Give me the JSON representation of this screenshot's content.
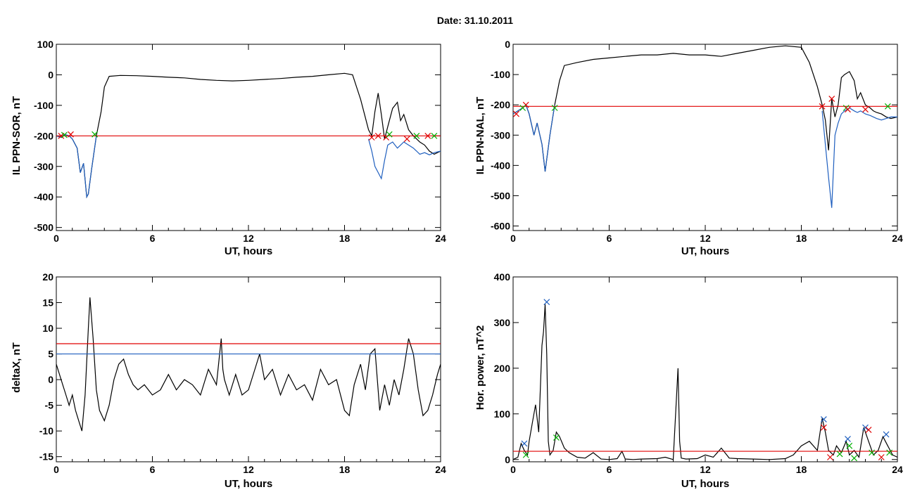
{
  "header": {
    "date_label": "Date:  31.10.2011"
  },
  "chart_data": [
    {
      "id": "sor",
      "type": "line",
      "xlabel": "UT, hours",
      "ylabel": "IL PPN-SOR, nT",
      "xlim": [
        0,
        24
      ],
      "ylim": [
        -510,
        100
      ],
      "xticks": [
        0,
        6,
        12,
        18,
        24
      ],
      "yticks": [
        -500,
        -400,
        -300,
        -200,
        -100,
        0,
        100
      ],
      "series": [
        {
          "color": "#000000",
          "x": [
            0,
            0.3,
            0.5,
            0.8,
            1.0,
            1.3,
            1.5,
            1.7,
            1.9,
            2.0,
            2.2,
            2.5,
            2.8,
            3.0,
            3.3,
            4,
            5,
            6,
            7,
            8,
            9,
            10,
            11,
            12,
            13,
            14,
            15,
            16,
            17,
            18,
            18.5,
            19,
            19.3,
            19.5,
            19.7,
            19.9,
            20.1,
            20.3,
            20.5,
            20.7,
            21.0,
            21.3,
            21.5,
            21.7,
            22.0,
            22.3,
            22.5,
            22.7,
            23.0,
            23.3,
            23.6,
            24
          ],
          "y": [
            -200,
            -205,
            -195,
            -200,
            -210,
            -240,
            -320,
            -290,
            -400,
            -390,
            -310,
            -200,
            -120,
            -40,
            -5,
            -2,
            -3,
            -5,
            -8,
            -10,
            -15,
            -18,
            -20,
            -18,
            -15,
            -12,
            -8,
            -5,
            0,
            5,
            0,
            -80,
            -140,
            -180,
            -200,
            -120,
            -60,
            -130,
            -210,
            -170,
            -110,
            -90,
            -150,
            -130,
            -180,
            -200,
            -210,
            -220,
            -230,
            -250,
            -260,
            -250
          ]
        },
        {
          "color": "#1f5fbf",
          "x": [
            0,
            0.3,
            0.5,
            0.8,
            1.0,
            1.3,
            1.5,
            1.7,
            1.9,
            2.0,
            2.2,
            2.5
          ],
          "y": [
            -200,
            -205,
            -195,
            -200,
            -210,
            -240,
            -320,
            -290,
            -400,
            -390,
            -310,
            -200
          ]
        },
        {
          "color": "#1f5fbf",
          "x": [
            19.5,
            19.7,
            19.9,
            20.1,
            20.3,
            20.5,
            20.7,
            21.0,
            21.3,
            21.5,
            21.7,
            22.0,
            22.3,
            22.5,
            22.7,
            23.0,
            23.3,
            23.6,
            24
          ],
          "y": [
            -210,
            -250,
            -300,
            -320,
            -340,
            -280,
            -230,
            -220,
            -240,
            -230,
            -220,
            -230,
            -240,
            -250,
            -260,
            -255,
            -262,
            -255,
            -250
          ]
        }
      ],
      "hlines": [
        {
          "y": -200,
          "color": "#e00000"
        }
      ],
      "markers": [
        {
          "x": 0.3,
          "y": -200,
          "color": "#e00000"
        },
        {
          "x": 0.9,
          "y": -195,
          "color": "#e00000"
        },
        {
          "x": 0.5,
          "y": -197,
          "color": "#00b000"
        },
        {
          "x": 2.4,
          "y": -195,
          "color": "#00b000"
        },
        {
          "x": 19.7,
          "y": -205,
          "color": "#e00000"
        },
        {
          "x": 20.1,
          "y": -200,
          "color": "#e00000"
        },
        {
          "x": 20.6,
          "y": -205,
          "color": "#e00000"
        },
        {
          "x": 20.8,
          "y": -195,
          "color": "#00b000"
        },
        {
          "x": 21.9,
          "y": -210,
          "color": "#e00000"
        },
        {
          "x": 22.5,
          "y": -200,
          "color": "#00b000"
        },
        {
          "x": 23.2,
          "y": -200,
          "color": "#e00000"
        },
        {
          "x": 23.6,
          "y": -200,
          "color": "#00b000"
        }
      ]
    },
    {
      "id": "nal",
      "type": "line",
      "xlabel": "UT, hours",
      "ylabel": "IL PPN-NAL, nT",
      "xlim": [
        0,
        24
      ],
      "ylim": [
        -615,
        0
      ],
      "xticks": [
        0,
        6,
        12,
        18,
        24
      ],
      "yticks": [
        -600,
        -500,
        -400,
        -300,
        -200,
        -100,
        0
      ],
      "series": [
        {
          "color": "#000000",
          "x": [
            0,
            0.3,
            0.6,
            0.8,
            1.0,
            1.3,
            1.5,
            1.8,
            2.0,
            2.3,
            2.6,
            2.9,
            3.2,
            4,
            5,
            6,
            7,
            8,
            9,
            10,
            11,
            12,
            13,
            14,
            15,
            16,
            17,
            18,
            18.5,
            19,
            19.3,
            19.5,
            19.7,
            19.9,
            20.1,
            20.3,
            20.5,
            20.7,
            21.0,
            21.3,
            21.5,
            21.7,
            22.0,
            22.3,
            22.5,
            22.7,
            23.0,
            23.3,
            23.6,
            24
          ],
          "y": [
            -230,
            -220,
            -210,
            -200,
            -230,
            -300,
            -260,
            -330,
            -420,
            -300,
            -200,
            -120,
            -70,
            -60,
            -50,
            -45,
            -40,
            -35,
            -35,
            -30,
            -35,
            -35,
            -40,
            -30,
            -20,
            -10,
            -5,
            -10,
            -60,
            -140,
            -200,
            -250,
            -350,
            -180,
            -240,
            -200,
            -110,
            -100,
            -90,
            -120,
            -180,
            -160,
            -200,
            -210,
            -220,
            -225,
            -230,
            -240,
            -245,
            -240
          ]
        },
        {
          "color": "#1f5fbf",
          "x": [
            0,
            0.3,
            0.6,
            0.8,
            1.0,
            1.3,
            1.5,
            1.8,
            2.0,
            2.3,
            2.6
          ],
          "y": [
            -230,
            -220,
            -210,
            -200,
            -230,
            -300,
            -260,
            -330,
            -420,
            -300,
            -200
          ]
        },
        {
          "color": "#1f5fbf",
          "x": [
            19.3,
            19.5,
            19.7,
            19.9,
            20.1,
            20.3,
            20.5,
            20.7,
            21.0,
            21.3,
            21.5,
            21.7,
            22.0,
            22.3,
            22.5,
            22.7,
            23.0,
            23.3,
            23.6,
            24
          ],
          "y": [
            -220,
            -330,
            -440,
            -540,
            -300,
            -260,
            -230,
            -220,
            -210,
            -220,
            -225,
            -220,
            -230,
            -235,
            -240,
            -245,
            -250,
            -245,
            -240,
            -240
          ]
        }
      ],
      "hlines": [
        {
          "y": -205,
          "color": "#e00000"
        }
      ],
      "markers": [
        {
          "x": 0.2,
          "y": -230,
          "color": "#e00000"
        },
        {
          "x": 0.8,
          "y": -200,
          "color": "#e00000"
        },
        {
          "x": 0.6,
          "y": -210,
          "color": "#00b000"
        },
        {
          "x": 2.6,
          "y": -210,
          "color": "#00b000"
        },
        {
          "x": 19.3,
          "y": -205,
          "color": "#e00000"
        },
        {
          "x": 19.9,
          "y": -180,
          "color": "#e00000"
        },
        {
          "x": 20.8,
          "y": -210,
          "color": "#00b000"
        },
        {
          "x": 20.9,
          "y": -215,
          "color": "#e00000"
        },
        {
          "x": 22.0,
          "y": -215,
          "color": "#e00000"
        },
        {
          "x": 23.4,
          "y": -205,
          "color": "#00b000"
        }
      ]
    },
    {
      "id": "deltax",
      "type": "line",
      "xlabel": "UT, hours",
      "ylabel": "deltaX, nT",
      "xlim": [
        0,
        24
      ],
      "ylim": [
        -16,
        20
      ],
      "xticks": [
        0,
        6,
        12,
        18,
        24
      ],
      "yticks": [
        -15,
        -10,
        -5,
        0,
        5,
        10,
        15,
        20
      ],
      "series": [
        {
          "color": "#000000",
          "x": [
            0,
            0.3,
            0.6,
            0.8,
            1.0,
            1.2,
            1.4,
            1.6,
            1.8,
            2.0,
            2.1,
            2.3,
            2.5,
            2.7,
            3.0,
            3.3,
            3.6,
            3.9,
            4.2,
            4.5,
            4.8,
            5.1,
            5.5,
            6.0,
            6.5,
            7.0,
            7.5,
            8.0,
            8.5,
            9.0,
            9.5,
            10.0,
            10.3,
            10.4,
            10.5,
            10.8,
            11.2,
            11.6,
            12.0,
            12.4,
            12.7,
            13.0,
            13.5,
            14.0,
            14.5,
            15.0,
            15.5,
            16.0,
            16.5,
            17.0,
            17.5,
            18.0,
            18.3,
            18.6,
            19.0,
            19.3,
            19.6,
            19.9,
            20.2,
            20.5,
            20.8,
            21.1,
            21.4,
            21.7,
            22.0,
            22.3,
            22.6,
            22.9,
            23.2,
            23.5,
            23.8,
            24
          ],
          "y": [
            3,
            0,
            -3,
            -5,
            -3,
            -6,
            -8,
            -10,
            -3,
            10,
            16,
            8,
            -2,
            -6,
            -8,
            -5,
            0,
            3,
            4,
            1,
            -1,
            -2,
            -1,
            -3,
            -2,
            1,
            -2,
            0,
            -1,
            -3,
            2,
            -1,
            8,
            2,
            0,
            -3,
            1,
            -3,
            -2,
            2,
            5,
            0,
            2,
            -3,
            1,
            -2,
            -1,
            -4,
            2,
            -1,
            0,
            -6,
            -7,
            -1,
            3,
            -2,
            5,
            6,
            -6,
            -1,
            -5,
            0,
            -3,
            2,
            8,
            5,
            -2,
            -7,
            -6,
            -3,
            1,
            3
          ]
        }
      ],
      "hlines": [
        {
          "y": 7,
          "color": "#e00000"
        },
        {
          "y": 5,
          "color": "#1f5fbf"
        }
      ],
      "markers": []
    },
    {
      "id": "power",
      "type": "line",
      "xlabel": "UT, hours",
      "ylabel": "Hor. power, nT^2",
      "xlim": [
        0,
        24
      ],
      "ylim": [
        -5,
        400
      ],
      "xticks": [
        0,
        6,
        12,
        18,
        24
      ],
      "yticks": [
        0,
        100,
        200,
        300,
        400
      ],
      "series": [
        {
          "color": "#000000",
          "x": [
            0,
            0.3,
            0.5,
            0.7,
            0.9,
            1.0,
            1.2,
            1.4,
            1.6,
            1.8,
            1.9,
            2.0,
            2.1,
            2.2,
            2.3,
            2.5,
            2.7,
            2.9,
            3.2,
            3.5,
            4.0,
            4.5,
            5.0,
            5.5,
            6.0,
            6.5,
            6.8,
            7.0,
            7.5,
            8.0,
            9.0,
            9.5,
            10.0,
            10.3,
            10.4,
            10.5,
            10.8,
            11.5,
            12.0,
            12.5,
            13.0,
            13.5,
            14.0,
            15.0,
            16.0,
            17.0,
            17.5,
            18.0,
            18.5,
            19.0,
            19.3,
            19.5,
            19.7,
            20.0,
            20.2,
            20.5,
            20.8,
            21.0,
            21.3,
            21.6,
            21.9,
            22.2,
            22.5,
            22.8,
            23.1,
            23.4,
            23.7,
            24
          ],
          "y": [
            0,
            5,
            35,
            20,
            10,
            40,
            80,
            120,
            60,
            250,
            280,
            340,
            230,
            40,
            10,
            20,
            60,
            50,
            25,
            15,
            5,
            3,
            15,
            1,
            0,
            2,
            18,
            1,
            0,
            1,
            2,
            5,
            0,
            200,
            40,
            3,
            1,
            2,
            10,
            5,
            25,
            3,
            2,
            1,
            0,
            2,
            10,
            30,
            40,
            20,
            90,
            60,
            20,
            10,
            30,
            15,
            40,
            10,
            20,
            5,
            70,
            40,
            10,
            20,
            50,
            30,
            10,
            5
          ]
        }
      ],
      "hlines": [
        {
          "y": 18,
          "color": "#e00000"
        }
      ],
      "markers": [
        {
          "x": 0.7,
          "y": 35,
          "color": "#1f5fbf"
        },
        {
          "x": 0.8,
          "y": 10,
          "color": "#00b000"
        },
        {
          "x": 2.1,
          "y": 345,
          "color": "#1f5fbf"
        },
        {
          "x": 2.7,
          "y": 48,
          "color": "#00b000"
        },
        {
          "x": 19.4,
          "y": 88,
          "color": "#1f5fbf"
        },
        {
          "x": 19.4,
          "y": 70,
          "color": "#e00000"
        },
        {
          "x": 19.8,
          "y": 5,
          "color": "#e00000"
        },
        {
          "x": 20.4,
          "y": 12,
          "color": "#00b000"
        },
        {
          "x": 20.9,
          "y": 45,
          "color": "#1f5fbf"
        },
        {
          "x": 21.0,
          "y": 30,
          "color": "#00b000"
        },
        {
          "x": 21.3,
          "y": 3,
          "color": "#00b000"
        },
        {
          "x": 22.0,
          "y": 70,
          "color": "#1f5fbf"
        },
        {
          "x": 22.2,
          "y": 65,
          "color": "#e00000"
        },
        {
          "x": 22.4,
          "y": 15,
          "color": "#00b000"
        },
        {
          "x": 23.0,
          "y": 5,
          "color": "#e00000"
        },
        {
          "x": 23.3,
          "y": 55,
          "color": "#1f5fbf"
        },
        {
          "x": 23.5,
          "y": 15,
          "color": "#00b000"
        }
      ]
    }
  ]
}
